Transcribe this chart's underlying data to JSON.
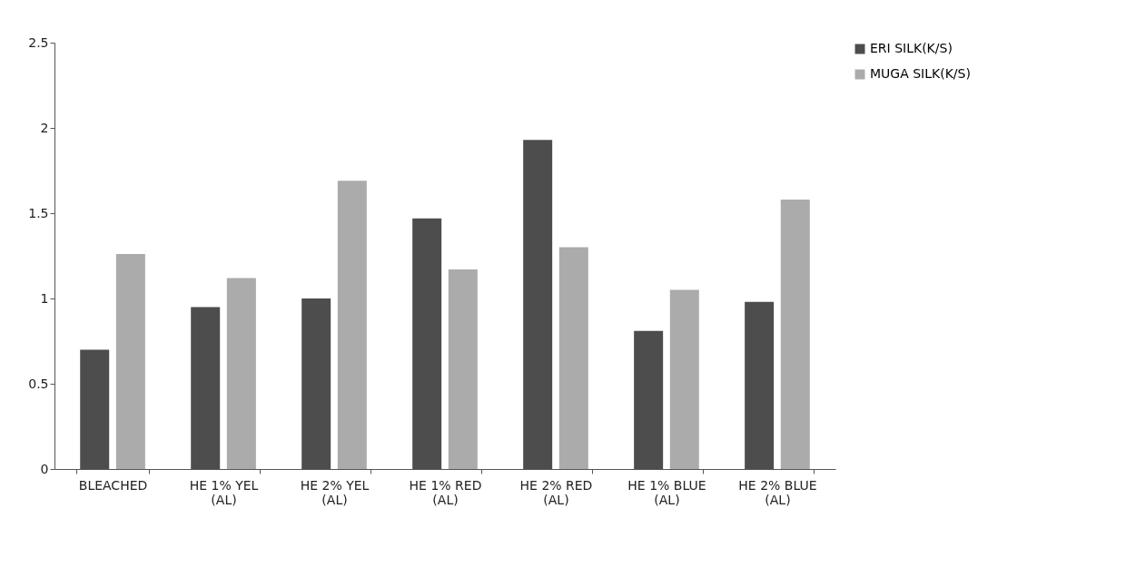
{
  "chart_data": {
    "type": "bar",
    "categories": [
      "BLEACHED",
      "HE 1% YEL (AL)",
      "HE 2% YEL (AL)",
      "HE 1% RED (AL)",
      "HE 2% RED (AL)",
      "HE 1% BLUE (AL)",
      "HE 2% BLUE (AL)"
    ],
    "series": [
      {
        "name": "ERI SILK(K/S)",
        "color": "#4d4d4d",
        "values": [
          0.7,
          0.95,
          1.0,
          1.47,
          1.93,
          0.81,
          0.98
        ]
      },
      {
        "name": "MUGA SILK(K/S)",
        "color": "#ababab",
        "values": [
          1.26,
          1.12,
          1.69,
          1.17,
          1.3,
          1.05,
          1.58
        ]
      }
    ],
    "ylim": [
      0,
      2.5
    ],
    "yticks": [
      0,
      0.5,
      1,
      1.5,
      2,
      2.5
    ],
    "grid": false,
    "legend": "right"
  }
}
